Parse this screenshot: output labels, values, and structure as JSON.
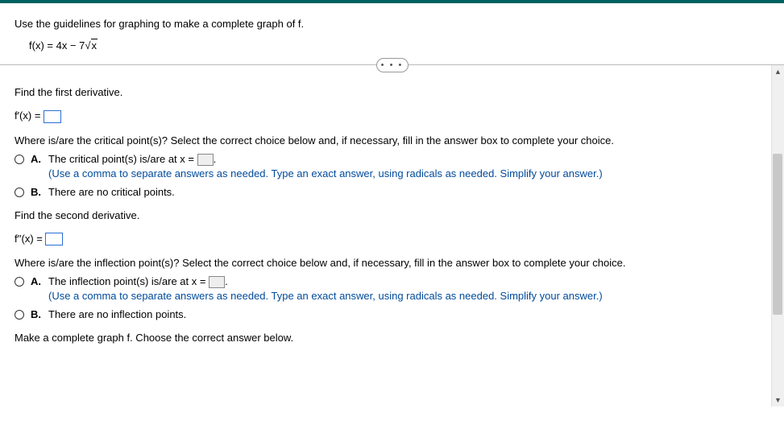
{
  "header": {
    "prompt": "Use the guidelines for graphing to make a complete graph of f.",
    "function_prefix": "f(x) = 4x − 7",
    "function_radicand": "x",
    "ellipsis": "• • •"
  },
  "q1": {
    "title": "Find the first derivative.",
    "expr_lhs": "f′(x) = ",
    "question": "Where is/are the critical point(s)? Select the correct choice below and, if necessary, fill in the answer box to complete your choice.",
    "optA_label": "A.",
    "optA_text": "The critical point(s) is/are at x = ",
    "optA_suffix": ".",
    "optA_hint": "(Use a comma to separate answers as needed. Type an exact answer, using radicals as needed. Simplify your answer.)",
    "optB_label": "B.",
    "optB_text": "There are no critical points."
  },
  "q2": {
    "title": "Find the second derivative.",
    "expr_lhs": "f′′(x) = ",
    "question": "Where is/are the inflection point(s)? Select the correct choice below and, if necessary, fill in the answer box to complete your choice.",
    "optA_label": "A.",
    "optA_text": "The inflection point(s) is/are at x = ",
    "optA_suffix": ".",
    "optA_hint": "(Use a comma to separate answers as needed. Type an exact answer, using radicals as needed. Simplify your answer.)",
    "optB_label": "B.",
    "optB_text": "There are no inflection points."
  },
  "q3": {
    "title": "Make a complete graph f. Choose the correct answer below."
  }
}
